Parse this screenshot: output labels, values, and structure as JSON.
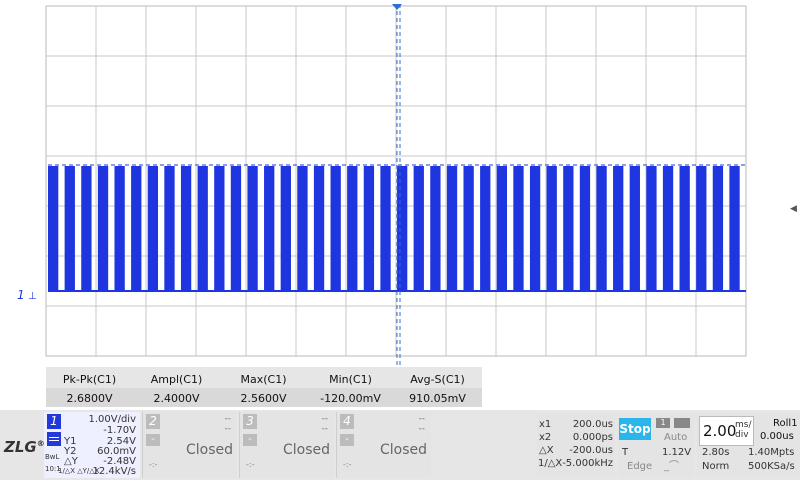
{
  "colors": {
    "trace": "#1f35e0",
    "grid": "#c8c8c8",
    "marker": "#2b6fd6",
    "stop_bg": "#2bb5e8",
    "ch1": "#2238d8"
  },
  "channel_marker": "1",
  "measurements": [
    {
      "name": "Pk-Pk(C1)",
      "value": "2.6800V"
    },
    {
      "name": "Ampl(C1)",
      "value": "2.4000V"
    },
    {
      "name": "Max(C1)",
      "value": "2.5600V"
    },
    {
      "name": "Min(C1)",
      "value": "-120.00mV"
    },
    {
      "name": "Avg-S(C1)",
      "value": "910.05mV"
    }
  ],
  "logo": {
    "text": "ZLG",
    "mark": "®"
  },
  "ch1": {
    "number": "1",
    "vdiv": "1.00V/div",
    "offset": "-1.70V",
    "y1_label": "Y1",
    "y1_value": "2.54V",
    "y2_label": "Y2",
    "y2_value": "60.0mV",
    "dy_label": "△Y",
    "dy_value": "-2.48V",
    "dydx_label": "1/△X △Y/△X",
    "dydx_value": "12.4kV/s",
    "bw": "BwL",
    "probe": "10:1"
  },
  "closed_channels": [
    {
      "number": "2",
      "status": "Closed"
    },
    {
      "number": "3",
      "status": "Closed"
    },
    {
      "number": "4",
      "status": "Closed"
    }
  ],
  "channel_dash": "--",
  "cursor": {
    "x1_label": "x1",
    "x1_value": "200.0us",
    "x2_label": "x2",
    "x2_value": "0.000ps",
    "dx_label": "△X",
    "dx_value": "-200.0us",
    "inv_label": "1/△X",
    "inv_value": "-5.000kHz"
  },
  "trigger": {
    "state": "Stop",
    "mode": "Auto",
    "t_label": "T",
    "level": "1.12V",
    "type": "Edge",
    "channel": "1"
  },
  "timebase": {
    "value": "2.00",
    "unit_top": "ms/",
    "unit_bottom": "div",
    "mode": "Roll",
    "mode_num": "1",
    "position": "0.00us",
    "record_time": "2.80s",
    "points": "1.40Mpts",
    "acq": "Norm",
    "rate": "500KSa/s"
  },
  "waveform": {
    "high_level_v": 2.56,
    "low_level_v": -0.12,
    "pulse_count": 42,
    "duty": 0.62
  }
}
